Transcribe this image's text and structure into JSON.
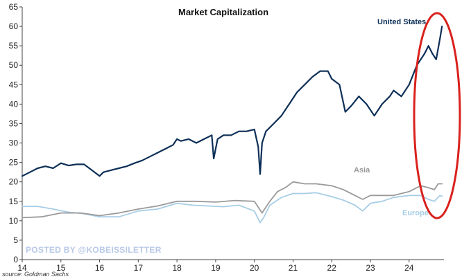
{
  "chart_data": {
    "type": "line",
    "title": "Market Capitalization",
    "xlabel": "",
    "ylabel": "",
    "x_tick_labels": [
      "14",
      "15",
      "16",
      "17",
      "18",
      "19",
      "20",
      "21",
      "22",
      "23",
      "24"
    ],
    "y_tick_labels": [
      "0",
      "5",
      "10",
      "15",
      "20",
      "25",
      "30",
      "35",
      "40",
      "45",
      "50",
      "55",
      "60",
      "65"
    ],
    "xlim": [
      14,
      24.9
    ],
    "ylim": [
      0,
      65
    ],
    "grid": false,
    "series": [
      {
        "name": "United States",
        "color": "#0d2f57",
        "x": [
          14.0,
          14.2,
          14.4,
          14.6,
          14.8,
          15.0,
          15.2,
          15.4,
          15.6,
          15.8,
          16.0,
          16.1,
          16.3,
          16.5,
          16.7,
          16.9,
          17.1,
          17.3,
          17.5,
          17.7,
          17.9,
          18.0,
          18.1,
          18.3,
          18.5,
          18.7,
          18.9,
          18.95,
          19.05,
          19.2,
          19.4,
          19.6,
          19.8,
          20.0,
          20.1,
          20.15,
          20.2,
          20.3,
          20.5,
          20.7,
          20.9,
          21.1,
          21.3,
          21.5,
          21.7,
          21.9,
          22.0,
          22.2,
          22.35,
          22.5,
          22.7,
          22.9,
          23.1,
          23.3,
          23.5,
          23.6,
          23.8,
          24.0,
          24.2,
          24.4,
          24.5,
          24.6,
          24.7,
          24.8,
          24.85
        ],
        "values": [
          21.5,
          22.5,
          23.5,
          24,
          23.5,
          24.8,
          24.2,
          24.5,
          24.5,
          23,
          21.5,
          22.5,
          23,
          23.5,
          24,
          24.8,
          25.5,
          26.5,
          27.5,
          28.5,
          29.5,
          31,
          30.5,
          31,
          30,
          31,
          32,
          26,
          31,
          32,
          32,
          33,
          33,
          33.5,
          29,
          22,
          30,
          33,
          35,
          37,
          40,
          43,
          45,
          47,
          48.5,
          48.5,
          46.5,
          45,
          38,
          39.5,
          42,
          40,
          37,
          40,
          42,
          43.5,
          42,
          45,
          50,
          53,
          55,
          53,
          51.5,
          57,
          60
        ]
      },
      {
        "name": "Asia",
        "color": "#9a9a9a",
        "x": [
          14.0,
          14.5,
          15.0,
          15.5,
          16.0,
          16.5,
          17.0,
          17.5,
          18.0,
          18.5,
          19.0,
          19.5,
          20.0,
          20.2,
          20.4,
          20.6,
          20.8,
          21.0,
          21.3,
          21.6,
          22.0,
          22.3,
          22.6,
          22.8,
          23.0,
          23.3,
          23.6,
          24.0,
          24.3,
          24.5,
          24.65,
          24.75,
          24.85
        ],
        "values": [
          10.8,
          11,
          12,
          12,
          11.3,
          12,
          13,
          13.8,
          15,
          15,
          14.8,
          15.2,
          15,
          12,
          15,
          17.5,
          18.5,
          20,
          19.5,
          19.5,
          19,
          18,
          16.5,
          15.5,
          16.5,
          16.5,
          16.5,
          17.5,
          19,
          18.5,
          18,
          19.5,
          19.5
        ]
      },
      {
        "name": "Europe",
        "color": "#a7cde6",
        "x": [
          14.0,
          14.4,
          14.8,
          15.2,
          15.6,
          16.0,
          16.5,
          17.0,
          17.5,
          18.0,
          18.4,
          18.8,
          19.2,
          19.6,
          20.0,
          20.15,
          20.25,
          20.4,
          20.7,
          21.0,
          21.3,
          21.6,
          22.0,
          22.3,
          22.6,
          22.8,
          23.0,
          23.3,
          23.6,
          24.0,
          24.3,
          24.5,
          24.65,
          24.8,
          24.85
        ],
        "values": [
          13.7,
          13.7,
          13,
          12.2,
          11.8,
          11,
          11,
          12.5,
          13,
          14.5,
          14,
          13.8,
          13.6,
          14,
          12.5,
          9.5,
          11,
          14,
          16,
          17,
          17,
          17.2,
          16.2,
          15.3,
          14,
          12.5,
          14.5,
          15,
          16,
          16.5,
          16.5,
          15.5,
          15,
          16.5,
          16.3
        ]
      }
    ]
  },
  "labels": {
    "watermark": "POSTED BY @KOBEISSILETTER",
    "source": "source: Goldman Sachs"
  },
  "colors": {
    "axis": "#444444",
    "highlight_ellipse": "#d9211d"
  }
}
